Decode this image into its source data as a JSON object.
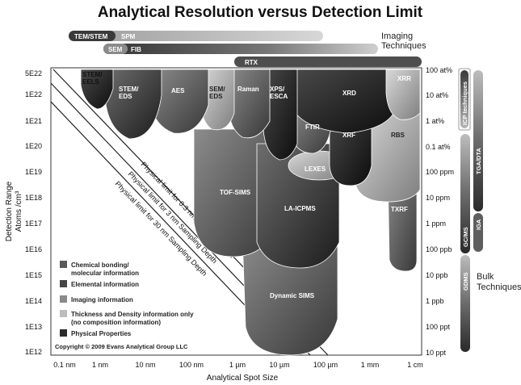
{
  "title": "Analytical Resolution versus Detection Limit",
  "axis": {
    "x_label": "Analytical Spot Size",
    "y_label_1": "Detection Range",
    "y_label_2": "Atoms /cm³",
    "x_ticks": [
      "0.1 nm",
      "1 nm",
      "10 nm",
      "100 nm",
      "1 µm",
      "10 µm",
      "100 µm",
      "1 mm",
      "1 cm"
    ],
    "y_ticks_left": [
      "5E22",
      "1E22",
      "1E21",
      "1E20",
      "1E19",
      "1E18",
      "1E17",
      "1E16",
      "1E15",
      "1E14",
      "1E13",
      "1E12"
    ],
    "y_ticks_right": [
      "100 at%",
      "10 at%",
      "1 at%",
      "0.1 at%",
      "100 ppm",
      "10 ppm",
      "1 ppm",
      "100 ppb",
      "10 ppb",
      "1 ppb",
      "100 ppt",
      "10 ppt"
    ]
  },
  "imaging": {
    "header_1": "Imaging",
    "header_2": "Techniques",
    "bars": [
      "TEM/STEM",
      "SPM",
      "SEM",
      "FIB",
      "RTX"
    ]
  },
  "bulk": {
    "header_1": "Bulk",
    "header_2": "Techniques",
    "bars": [
      "ICP techniques",
      "TGA/DTA",
      "IGA",
      "GC/MS",
      "GDMS"
    ]
  },
  "techniques": [
    "STEM/\nEELS",
    "STEM/\nEDS",
    "AES",
    "SEM/\nEDS",
    "Raman",
    "XPS/\nESCA",
    "XRD",
    "XRR",
    "FTIR",
    "XRF",
    "RBS",
    "LEXES",
    "TOF-SIMS",
    "LA-ICPMS",
    "TXRF",
    "Dynamic SIMS"
  ],
  "limits": [
    "Physical limit for 0.3 nm Sampling Depth",
    "Physical limit for 3 nm Sampling Depth",
    "Physical limit for 30 nm Sampling Depth"
  ],
  "legend": [
    {
      "label": "Chemical bonding/",
      "label2": "molecular information",
      "color": "#5a5a5a"
    },
    {
      "label": "Elemental information",
      "label2": "",
      "color": "#454545"
    },
    {
      "label": "Imaging information",
      "label2": "",
      "color": "#8a8a8a"
    },
    {
      "label": "Thickness and Density information only",
      "label2": "(no composition information)",
      "color": "#bdbdbd"
    },
    {
      "label": "Physical Properties",
      "label2": "",
      "color": "#2b2b2b"
    }
  ],
  "copyright": "Copyright © 2009 Evans Analytical Group LLC"
}
